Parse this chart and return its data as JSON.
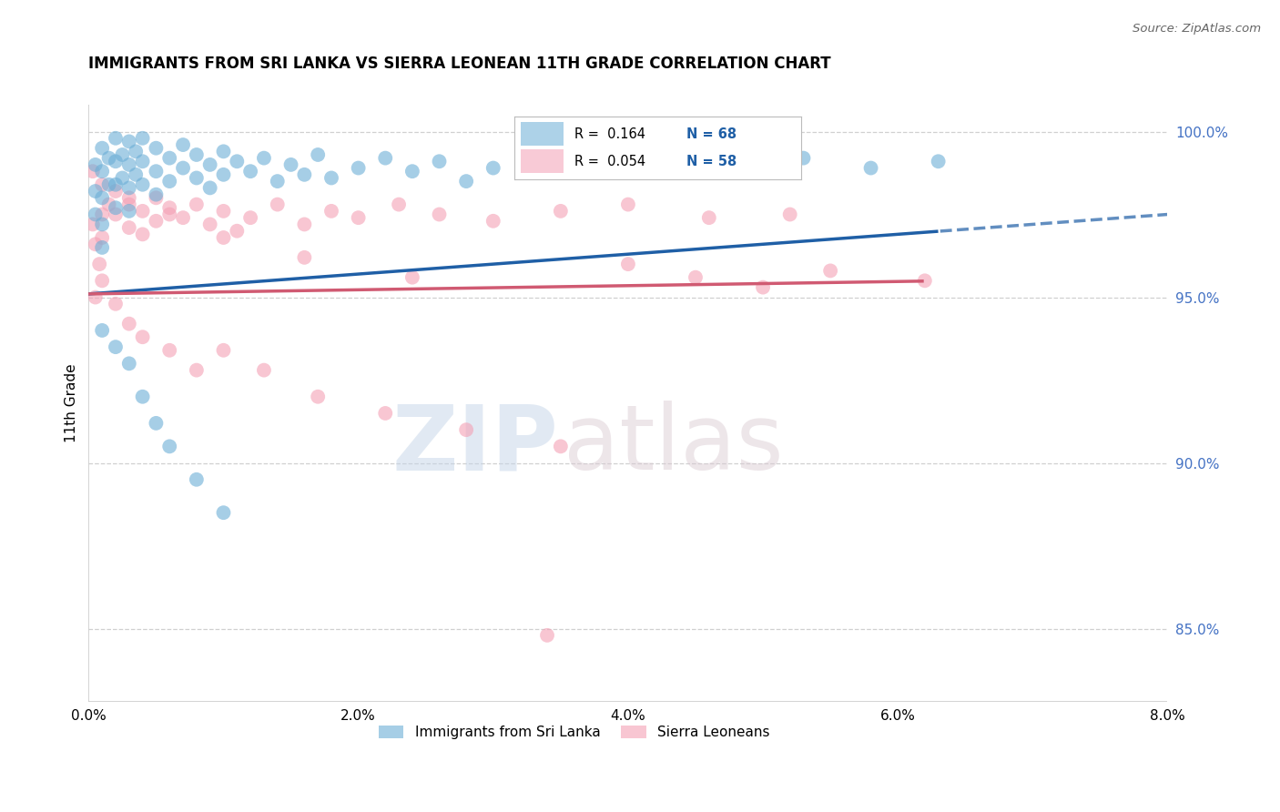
{
  "title": "IMMIGRANTS FROM SRI LANKA VS SIERRA LEONEAN 11TH GRADE CORRELATION CHART",
  "source": "Source: ZipAtlas.com",
  "xlabel_vals": [
    0.0,
    0.02,
    0.04,
    0.06,
    0.08
  ],
  "ylabel_vals": [
    0.85,
    0.9,
    0.95,
    1.0
  ],
  "xmin": 0.0,
  "xmax": 0.08,
  "ymin": 0.828,
  "ymax": 1.008,
  "sri_lanka_R": 0.164,
  "sri_lanka_N": 68,
  "sierra_leone_R": 0.054,
  "sierra_leone_N": 58,
  "sri_lanka_color": "#6baed6",
  "sierra_leone_color": "#f4a0b5",
  "trend_sri_lanka_color": "#1f5fa6",
  "trend_sierra_leone_color": "#d05a72",
  "sri_lanka_x": [
    0.0005,
    0.0005,
    0.0005,
    0.001,
    0.001,
    0.001,
    0.001,
    0.001,
    0.0015,
    0.0015,
    0.002,
    0.002,
    0.002,
    0.002,
    0.0025,
    0.0025,
    0.003,
    0.003,
    0.003,
    0.003,
    0.0035,
    0.0035,
    0.004,
    0.004,
    0.004,
    0.005,
    0.005,
    0.005,
    0.006,
    0.006,
    0.007,
    0.007,
    0.008,
    0.008,
    0.009,
    0.009,
    0.01,
    0.01,
    0.011,
    0.012,
    0.013,
    0.014,
    0.015,
    0.016,
    0.017,
    0.018,
    0.02,
    0.022,
    0.024,
    0.026,
    0.028,
    0.03,
    0.033,
    0.036,
    0.04,
    0.044,
    0.048,
    0.053,
    0.058,
    0.063,
    0.001,
    0.002,
    0.003,
    0.004,
    0.005,
    0.006,
    0.008,
    0.01
  ],
  "sri_lanka_y": [
    0.99,
    0.982,
    0.975,
    0.995,
    0.988,
    0.98,
    0.972,
    0.965,
    0.992,
    0.984,
    0.998,
    0.991,
    0.984,
    0.977,
    0.993,
    0.986,
    0.997,
    0.99,
    0.983,
    0.976,
    0.994,
    0.987,
    0.998,
    0.991,
    0.984,
    0.995,
    0.988,
    0.981,
    0.992,
    0.985,
    0.996,
    0.989,
    0.993,
    0.986,
    0.99,
    0.983,
    0.994,
    0.987,
    0.991,
    0.988,
    0.992,
    0.985,
    0.99,
    0.987,
    0.993,
    0.986,
    0.989,
    0.992,
    0.988,
    0.991,
    0.985,
    0.989,
    0.992,
    0.988,
    0.991,
    0.993,
    0.988,
    0.992,
    0.989,
    0.991,
    0.94,
    0.935,
    0.93,
    0.92,
    0.912,
    0.905,
    0.895,
    0.885
  ],
  "sierra_leone_x": [
    0.0003,
    0.0005,
    0.0008,
    0.001,
    0.001,
    0.0015,
    0.002,
    0.002,
    0.003,
    0.003,
    0.004,
    0.004,
    0.005,
    0.005,
    0.006,
    0.007,
    0.008,
    0.009,
    0.01,
    0.011,
    0.012,
    0.014,
    0.016,
    0.018,
    0.02,
    0.023,
    0.026,
    0.03,
    0.035,
    0.04,
    0.046,
    0.052,
    0.0005,
    0.001,
    0.002,
    0.003,
    0.004,
    0.006,
    0.008,
    0.01,
    0.013,
    0.017,
    0.022,
    0.028,
    0.035,
    0.04,
    0.045,
    0.05,
    0.055,
    0.062,
    0.0003,
    0.001,
    0.003,
    0.006,
    0.01,
    0.016,
    0.024,
    0.034
  ],
  "sierra_leone_y": [
    0.972,
    0.966,
    0.96,
    0.975,
    0.968,
    0.978,
    0.982,
    0.975,
    0.978,
    0.971,
    0.976,
    0.969,
    0.98,
    0.973,
    0.977,
    0.974,
    0.978,
    0.972,
    0.976,
    0.97,
    0.974,
    0.978,
    0.972,
    0.976,
    0.974,
    0.978,
    0.975,
    0.973,
    0.976,
    0.978,
    0.974,
    0.975,
    0.95,
    0.955,
    0.948,
    0.942,
    0.938,
    0.934,
    0.928,
    0.934,
    0.928,
    0.92,
    0.915,
    0.91,
    0.905,
    0.96,
    0.956,
    0.953,
    0.958,
    0.955,
    0.988,
    0.984,
    0.98,
    0.975,
    0.968,
    0.962,
    0.956,
    0.848
  ],
  "watermark_zip": "ZIP",
  "watermark_atlas": "atlas",
  "background_color": "#ffffff",
  "grid_color": "#d0d0d0"
}
